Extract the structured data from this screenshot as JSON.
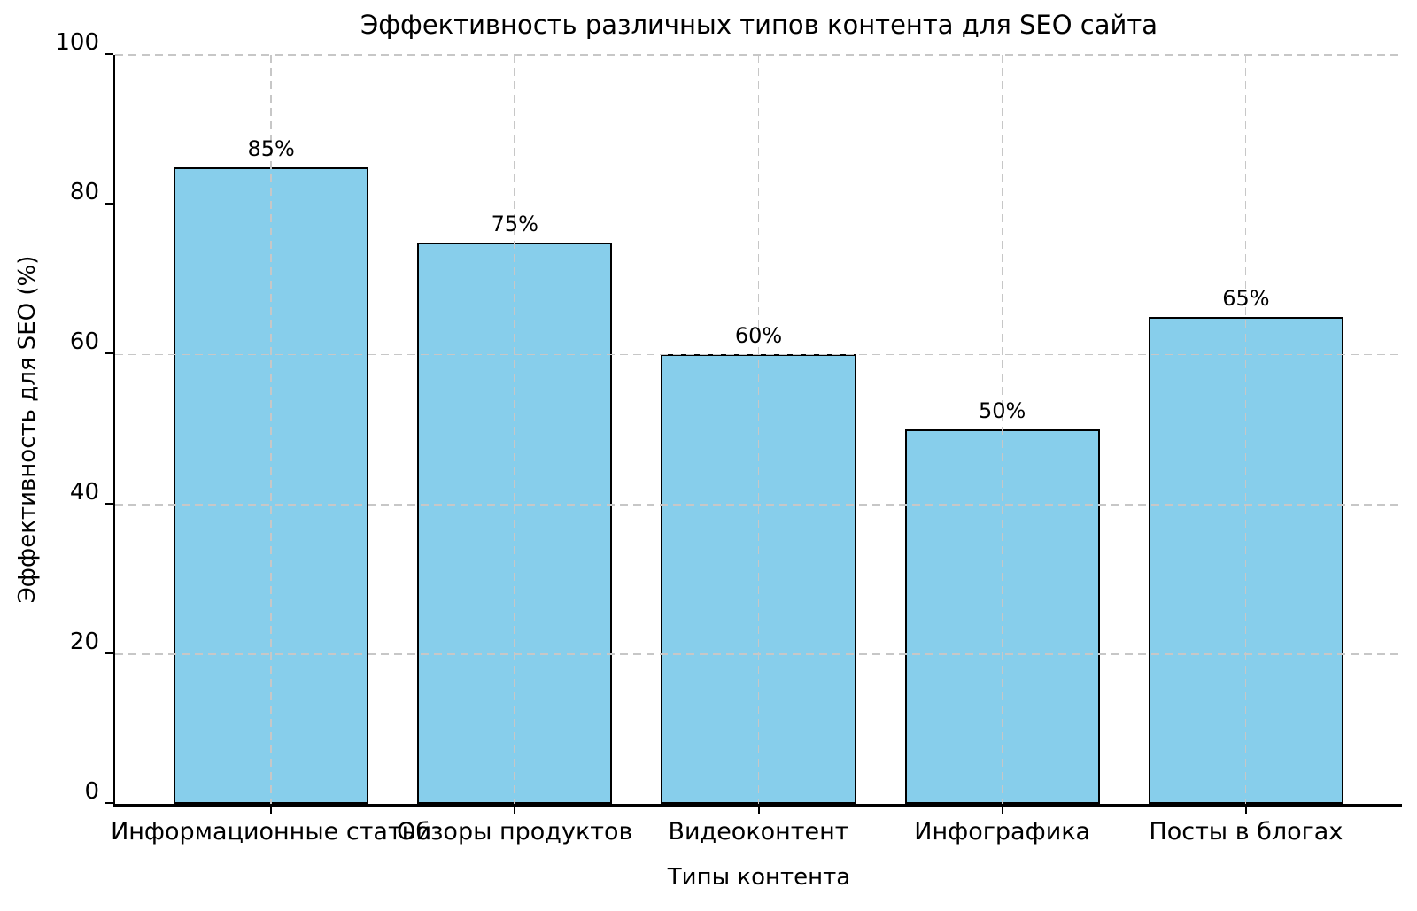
{
  "chart_data": {
    "type": "bar",
    "title": "Эффективность различных типов контента для SEO сайта",
    "xlabel": "Типы контента",
    "ylabel": "Эффективность для SEO (%)",
    "categories": [
      "Информационные статьи",
      "Обзоры продуктов",
      "Видеоконтент",
      "Инфографика",
      "Посты в блогах"
    ],
    "values": [
      85,
      75,
      60,
      50,
      65
    ],
    "value_labels": [
      "85%",
      "75%",
      "60%",
      "50%",
      "65%"
    ],
    "ylim": [
      0,
      100
    ],
    "xlim": [
      -0.64,
      4.64
    ],
    "bar_width": 0.8,
    "yticks": [
      0,
      20,
      40,
      60,
      80,
      100
    ],
    "ytick_labels": [
      "0",
      "20",
      "40",
      "60",
      "80",
      "100"
    ],
    "grid": true,
    "grid_style": "dashed",
    "grid_above_bars": true,
    "legend": null,
    "bar_color": "#87CEEB",
    "bar_edge_color": "#000000",
    "grid_color": "#c7c7c7",
    "text_color": "#000000",
    "background_color": "#ffffff"
  }
}
